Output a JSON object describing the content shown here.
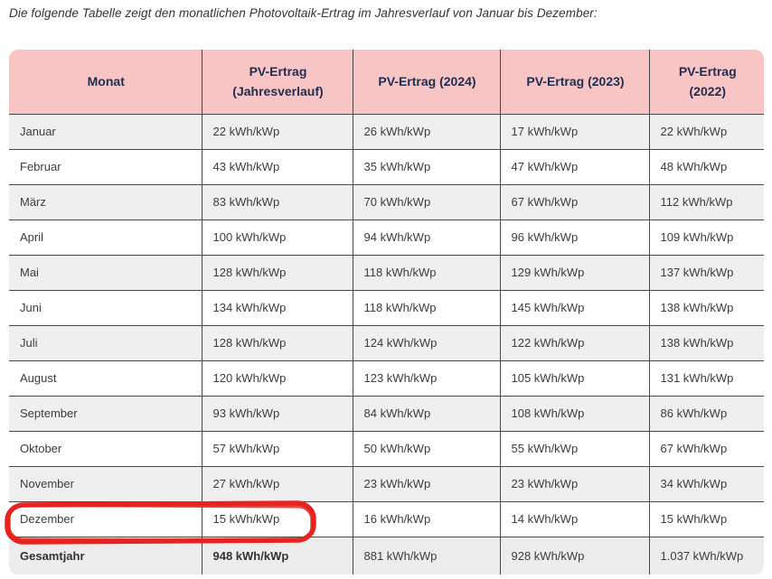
{
  "intro": "Die folgende Tabelle zeigt den monatlichen Photovoltaik-Ertrag im Jahresverlauf von Januar bis Dezember:",
  "colors": {
    "header_bg": "#f9c4c4",
    "header_text": "#1e2e50",
    "row_alt_bg": "#efefef",
    "border": "#474747",
    "annotation_red": "#e8231e"
  },
  "table": {
    "headers": [
      "Monat",
      "PV-Ertrag (Jahresverlauf)",
      "PV-Ertrag (2024)",
      "PV-Ertrag (2023)",
      "PV-Ertrag (2022)"
    ],
    "rows": [
      {
        "month": "Januar",
        "values": [
          "22 kWh/kWp",
          "26 kWh/kWp",
          "17 kWh/kWp",
          "22 kWh/kWp"
        ]
      },
      {
        "month": "Februar",
        "values": [
          "43 kWh/kWp",
          "35 kWh/kWp",
          "47 kWh/kWp",
          "48 kWh/kWp"
        ]
      },
      {
        "month": "März",
        "values": [
          "83 kWh/kWp",
          "70 kWh/kWp",
          "67 kWh/kWp",
          "112 kWh/kWp"
        ]
      },
      {
        "month": "April",
        "values": [
          "100 kWh/kWp",
          "94 kWh/kWp",
          "96 kWh/kWp",
          "109 kWh/kWp"
        ]
      },
      {
        "month": "Mai",
        "values": [
          "128 kWh/kWp",
          "118 kWh/kWp",
          "129 kWh/kWp",
          "137 kWh/kWp"
        ]
      },
      {
        "month": "Juni",
        "values": [
          "134 kWh/kWp",
          "118 kWh/kWp",
          "145 kWh/kWp",
          "138 kWh/kWp"
        ]
      },
      {
        "month": "Juli",
        "values": [
          "128 kWh/kWp",
          "124 kWh/kWp",
          "122 kWh/kWp",
          "138 kWh/kWp"
        ]
      },
      {
        "month": "August",
        "values": [
          "120 kWh/kWp",
          "123 kWh/kWp",
          "105 kWh/kWp",
          "131 kWh/kWp"
        ]
      },
      {
        "month": "September",
        "values": [
          "93 kWh/kWp",
          "84 kWh/kWp",
          "108 kWh/kWp",
          "86 kWh/kWp"
        ]
      },
      {
        "month": "Oktober",
        "values": [
          "57 kWh/kWp",
          "50 kWh/kWp",
          "55 kWh/kWp",
          "67 kWh/kWp"
        ]
      },
      {
        "month": "November",
        "values": [
          "27 kWh/kWp",
          "23 kWh/kWp",
          "23 kWh/kWp",
          "34 kWh/kWp"
        ]
      },
      {
        "month": "Dezember",
        "values": [
          "15 kWh/kWp",
          "16 kWh/kWp",
          "14 kWh/kWp",
          "15 kWh/kWp"
        ]
      }
    ],
    "total_row": {
      "label": "Gesamtjahr",
      "values": [
        "948 kWh/kWp",
        "881 kWh/kWp",
        "928 kWh/kWp",
        "1.037 kWh/kWp"
      ]
    }
  },
  "annotation": {
    "shape": "hand-drawn red rounded rectangle",
    "highlights": "Dezember — 15 kWh/kWp",
    "color": "#e8231e"
  }
}
